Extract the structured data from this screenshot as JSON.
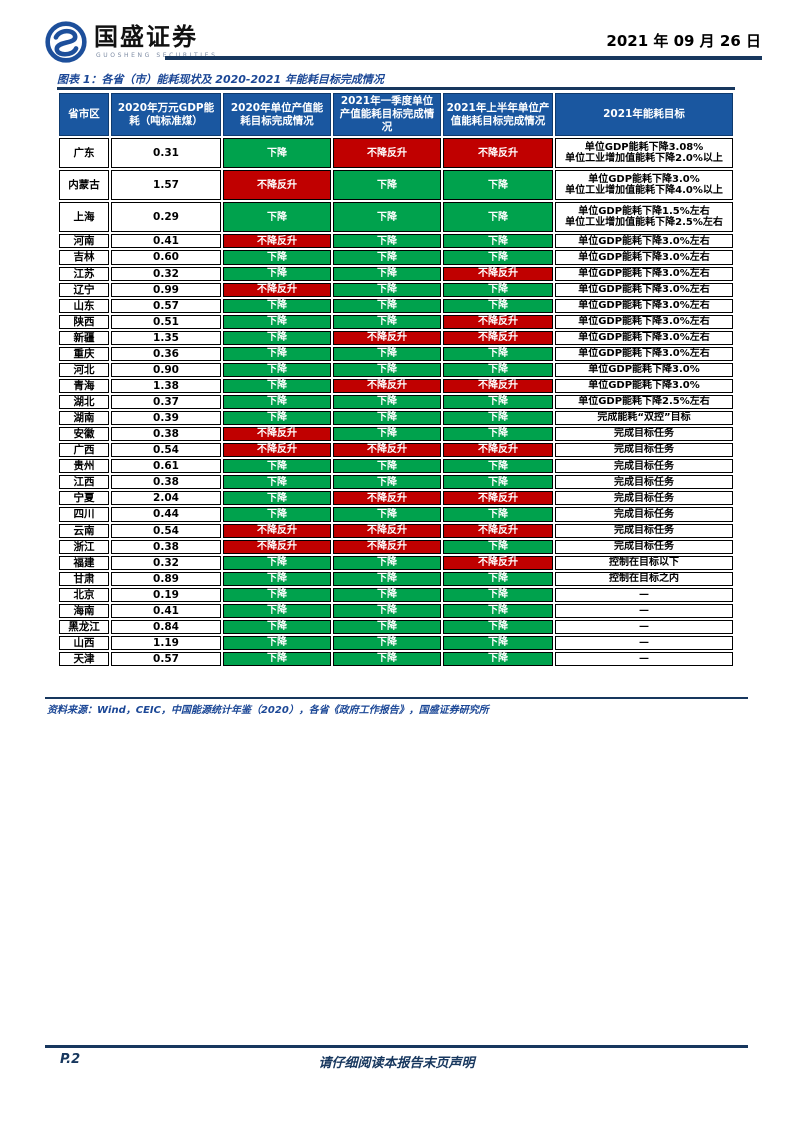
{
  "header": {
    "brand_name": "国盛证券",
    "brand_subtitle": "GUOSHENG SECURITIES",
    "date": "2021 年 09 月 26 日"
  },
  "figure": {
    "title": "图表 1：各省（市）能耗现状及 2020-2021 年能耗目标完成情况",
    "source": "资料来源：Wind，CEIC，中国能源统计年鉴（2020），各省《政府工作报告》，国盛证券研究所"
  },
  "table": {
    "columns": [
      "省市区",
      "2020年万元GDP能耗（吨标准煤）",
      "2020年单位产值能耗目标完成情况",
      "2021年一季度单位产值能耗目标完成情况",
      "2021年上半年单位产值能耗目标完成情况",
      "2021年能耗目标"
    ],
    "status_colors": {
      "下降": "#00A24D",
      "不降反升": "#C00000"
    },
    "rows": [
      {
        "province": "广东",
        "energy": "0.31",
        "s2020": "下降",
        "s2021q1": "不降反升",
        "s2021h1": "不降反升",
        "target": [
          "单位GDP能耗下降3.08%",
          "单位工业增加值能耗下降2.0%以上"
        ]
      },
      {
        "province": "内蒙古",
        "energy": "1.57",
        "s2020": "不降反升",
        "s2021q1": "下降",
        "s2021h1": "下降",
        "target": [
          "单位GDP能耗下降3.0%",
          "单位工业增加值能耗下降4.0%以上"
        ]
      },
      {
        "province": "上海",
        "energy": "0.29",
        "s2020": "下降",
        "s2021q1": "下降",
        "s2021h1": "下降",
        "target": [
          "单位GDP能耗下降1.5%左右",
          "单位工业增加值能耗下降2.5%左右"
        ]
      },
      {
        "province": "河南",
        "energy": "0.41",
        "s2020": "不降反升",
        "s2021q1": "下降",
        "s2021h1": "下降",
        "target": [
          "单位GDP能耗下降3.0%左右"
        ]
      },
      {
        "province": "吉林",
        "energy": "0.60",
        "s2020": "下降",
        "s2021q1": "下降",
        "s2021h1": "下降",
        "target": [
          "单位GDP能耗下降3.0%左右"
        ]
      },
      {
        "province": "江苏",
        "energy": "0.32",
        "s2020": "下降",
        "s2021q1": "下降",
        "s2021h1": "不降反升",
        "target": [
          "单位GDP能耗下降3.0%左右"
        ]
      },
      {
        "province": "辽宁",
        "energy": "0.99",
        "s2020": "不降反升",
        "s2021q1": "下降",
        "s2021h1": "下降",
        "target": [
          "单位GDP能耗下降3.0%左右"
        ]
      },
      {
        "province": "山东",
        "energy": "0.57",
        "s2020": "下降",
        "s2021q1": "下降",
        "s2021h1": "下降",
        "target": [
          "单位GDP能耗下降3.0%左右"
        ]
      },
      {
        "province": "陕西",
        "energy": "0.51",
        "s2020": "下降",
        "s2021q1": "下降",
        "s2021h1": "不降反升",
        "target": [
          "单位GDP能耗下降3.0%左右"
        ]
      },
      {
        "province": "新疆",
        "energy": "1.35",
        "s2020": "下降",
        "s2021q1": "不降反升",
        "s2021h1": "不降反升",
        "target": [
          "单位GDP能耗下降3.0%左右"
        ]
      },
      {
        "province": "重庆",
        "energy": "0.36",
        "s2020": "下降",
        "s2021q1": "下降",
        "s2021h1": "下降",
        "target": [
          "单位GDP能耗下降3.0%左右"
        ]
      },
      {
        "province": "河北",
        "energy": "0.90",
        "s2020": "下降",
        "s2021q1": "下降",
        "s2021h1": "下降",
        "target": [
          "单位GDP能耗下降3.0%"
        ]
      },
      {
        "province": "青海",
        "energy": "1.38",
        "s2020": "下降",
        "s2021q1": "不降反升",
        "s2021h1": "不降反升",
        "target": [
          "单位GDP能耗下降3.0%"
        ]
      },
      {
        "province": "湖北",
        "energy": "0.37",
        "s2020": "下降",
        "s2021q1": "下降",
        "s2021h1": "下降",
        "target": [
          "单位GDP能耗下降2.5%左右"
        ]
      },
      {
        "province": "湖南",
        "energy": "0.39",
        "s2020": "下降",
        "s2021q1": "下降",
        "s2021h1": "下降",
        "target": [
          "完成能耗“双控”目标"
        ]
      },
      {
        "province": "安徽",
        "energy": "0.38",
        "s2020": "不降反升",
        "s2021q1": "下降",
        "s2021h1": "下降",
        "target": [
          "完成目标任务"
        ]
      },
      {
        "province": "广西",
        "energy": "0.54",
        "s2020": "不降反升",
        "s2021q1": "不降反升",
        "s2021h1": "不降反升",
        "target": [
          "完成目标任务"
        ]
      },
      {
        "province": "贵州",
        "energy": "0.61",
        "s2020": "下降",
        "s2021q1": "下降",
        "s2021h1": "下降",
        "target": [
          "完成目标任务"
        ]
      },
      {
        "province": "江西",
        "energy": "0.38",
        "s2020": "下降",
        "s2021q1": "下降",
        "s2021h1": "下降",
        "target": [
          "完成目标任务"
        ]
      },
      {
        "province": "宁夏",
        "energy": "2.04",
        "s2020": "下降",
        "s2021q1": "不降反升",
        "s2021h1": "不降反升",
        "target": [
          "完成目标任务"
        ]
      },
      {
        "province": "四川",
        "energy": "0.44",
        "s2020": "下降",
        "s2021q1": "下降",
        "s2021h1": "下降",
        "target": [
          "完成目标任务"
        ]
      },
      {
        "province": "云南",
        "energy": "0.54",
        "s2020": "不降反升",
        "s2021q1": "不降反升",
        "s2021h1": "不降反升",
        "target": [
          "完成目标任务"
        ]
      },
      {
        "province": "浙江",
        "energy": "0.38",
        "s2020": "不降反升",
        "s2021q1": "不降反升",
        "s2021h1": "下降",
        "target": [
          "完成目标任务"
        ]
      },
      {
        "province": "福建",
        "energy": "0.32",
        "s2020": "下降",
        "s2021q1": "下降",
        "s2021h1": "不降反升",
        "target": [
          "控制在目标以下"
        ]
      },
      {
        "province": "甘肃",
        "energy": "0.89",
        "s2020": "下降",
        "s2021q1": "下降",
        "s2021h1": "下降",
        "target": [
          "控制在目标之内"
        ]
      },
      {
        "province": "北京",
        "energy": "0.19",
        "s2020": "下降",
        "s2021q1": "下降",
        "s2021h1": "下降",
        "target": [
          "—"
        ]
      },
      {
        "province": "海南",
        "energy": "0.41",
        "s2020": "下降",
        "s2021q1": "下降",
        "s2021h1": "下降",
        "target": [
          "—"
        ]
      },
      {
        "province": "黑龙江",
        "energy": "0.84",
        "s2020": "下降",
        "s2021q1": "下降",
        "s2021h1": "下降",
        "target": [
          "—"
        ]
      },
      {
        "province": "山西",
        "energy": "1.19",
        "s2020": "下降",
        "s2021q1": "下降",
        "s2021h1": "下降",
        "target": [
          "—"
        ]
      },
      {
        "province": "天津",
        "energy": "0.57",
        "s2020": "下降",
        "s2021q1": "下降",
        "s2021h1": "下降",
        "target": [
          "—"
        ]
      }
    ]
  },
  "footer": {
    "page": "P.2",
    "disclaimer": "请仔细阅读本报告末页声明"
  }
}
